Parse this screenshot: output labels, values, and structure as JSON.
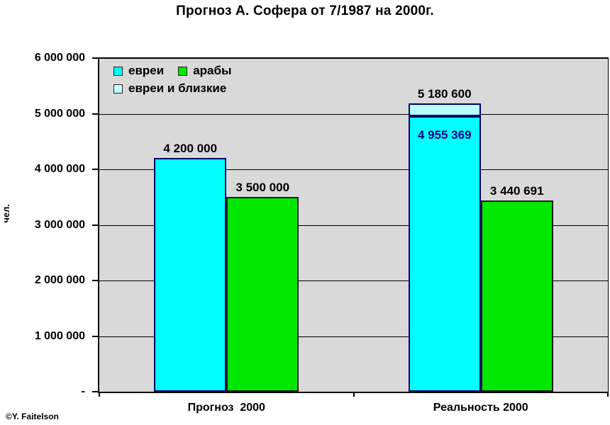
{
  "footer": {
    "copyright": "©Y. Faitelson"
  },
  "chart_data": {
    "type": "bar",
    "title": "Прогноз А. Софера от 7/1987 на 2000г.",
    "ylabel": "чел.",
    "xlabel": "",
    "ylim": [
      0,
      6000000
    ],
    "grid": true,
    "plot_background": "#D9D9D9",
    "legend_position": "top-left-inside",
    "legend": [
      {
        "key": "jews",
        "label": "евреи",
        "color": "#00FFFF"
      },
      {
        "key": "arabs",
        "label": "арабы",
        "color": "#00E800"
      },
      {
        "key": "jews-and-close",
        "label": "евреи и близкие",
        "color": "#CCFFFF"
      }
    ],
    "yticks": [
      {
        "value": 6000000,
        "label": "6 000 000"
      },
      {
        "value": 5000000,
        "label": "5 000 000"
      },
      {
        "value": 4000000,
        "label": "4 000 000"
      },
      {
        "value": 3000000,
        "label": "3 000 000"
      },
      {
        "value": 2000000,
        "label": "2 000 000"
      },
      {
        "value": 1000000,
        "label": "1 000 000"
      },
      {
        "value": 0,
        "label": "-"
      }
    ],
    "categories": [
      "Прогноз  2000",
      "Реальность 2000"
    ],
    "groups": [
      {
        "category": "Прогноз  2000",
        "bars": [
          {
            "series_key": "jews",
            "series": "евреи",
            "value": 4200000,
            "top_label": "4 200 000",
            "color": "#00FFFF",
            "border": "#000066"
          },
          {
            "series_key": "arabs",
            "series": "арабы",
            "value": 3500000,
            "top_label": "3 500 000",
            "color": "#00E800",
            "border": "#1A1A1A"
          }
        ]
      },
      {
        "category": "Реальность 2000",
        "bars": [
          {
            "series_key": "jews-stacked",
            "series": "евреи и близкие (всего)",
            "total": 5180600,
            "top_label": "5 180 600",
            "segments": [
              {
                "series_key": "jews",
                "series": "евреи",
                "value": 4955369,
                "color": "#00FFFF",
                "border": "#000066",
                "inside_label": "4 955 369",
                "label_color": "#000080"
              },
              {
                "series_key": "jews-and-close",
                "series": "евреи и близкие",
                "value": 225231,
                "color": "#B8FFFF",
                "border": "#000066",
                "stripes": true
              }
            ]
          },
          {
            "series_key": "arabs",
            "series": "арабы",
            "value": 3440691,
            "top_label": "3 440 691",
            "color": "#00E800",
            "border": "#1A1A1A"
          }
        ]
      }
    ]
  }
}
